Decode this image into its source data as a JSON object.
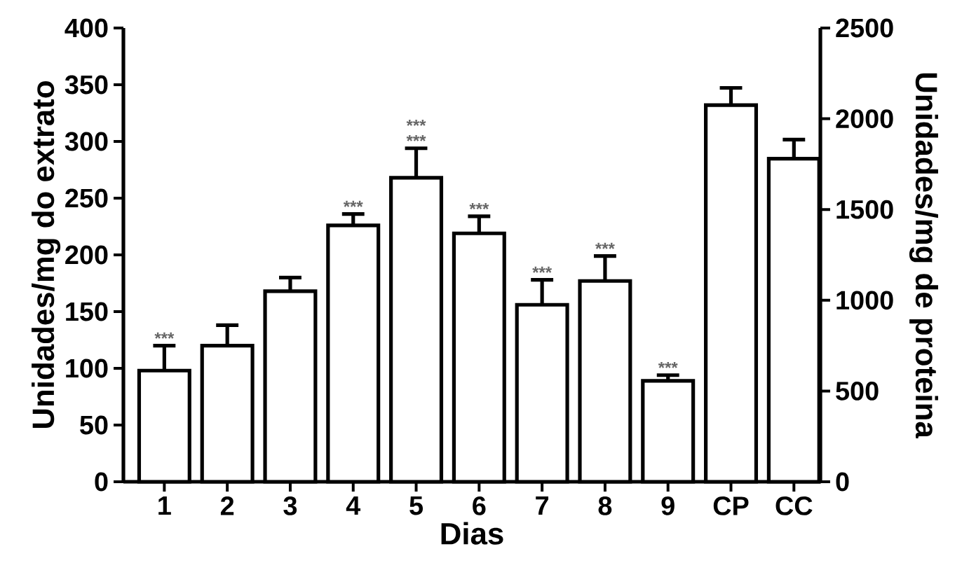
{
  "chart_data": {
    "type": "bar",
    "categories": [
      "1",
      "2",
      "3",
      "4",
      "5",
      "6",
      "7",
      "8",
      "9",
      "CP",
      "CC"
    ],
    "series": [
      {
        "color": "#000000",
        "values": [
          98,
          120,
          168,
          226,
          268,
          219,
          156,
          177,
          89,
          null,
          null
        ],
        "errors": [
          22,
          18,
          12,
          10,
          26,
          15,
          22,
          22,
          5,
          null,
          null
        ]
      },
      {
        "color": "#000000",
        "axis": "y2",
        "values": [
          null,
          null,
          null,
          null,
          null,
          null,
          null,
          null,
          null,
          2075,
          1780
        ],
        "errors": [
          null,
          null,
          null,
          null,
          null,
          null,
          null,
          null,
          null,
          95,
          105
        ]
      }
    ],
    "xlabel": "Dias",
    "ylabel": "Unidades/mg do extrato",
    "y2label": "Unidades/mg de proteina",
    "ylim": [
      0,
      400
    ],
    "yticks": [
      0,
      50,
      100,
      150,
      200,
      250,
      300,
      350,
      400
    ],
    "y2lim": [
      0,
      2500
    ],
    "y2ticks": [
      0,
      500,
      1000,
      1500,
      2000,
      2500
    ],
    "annotations": [
      {
        "text": "***",
        "x": "1",
        "y": 120
      },
      {
        "text": "***",
        "x": "4",
        "y": 236
      },
      {
        "text": "***",
        "x": "5",
        "y": 294
      },
      {
        "text": "***",
        "x": "5",
        "y": 294
      },
      {
        "text": "***",
        "x": "6",
        "y": 234
      },
      {
        "text": "***",
        "x": "7",
        "y": 178
      },
      {
        "text": "***",
        "x": "8",
        "y": 199
      },
      {
        "text": "***",
        "x": "9",
        "y": 94
      }
    ]
  }
}
